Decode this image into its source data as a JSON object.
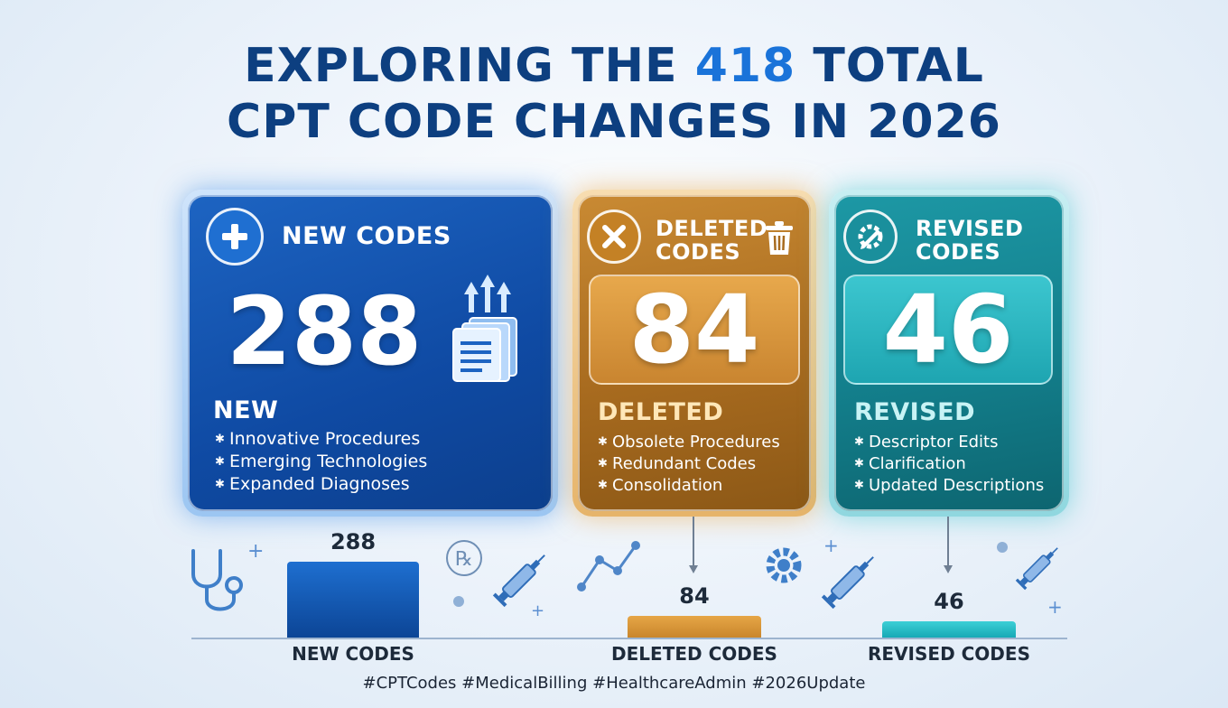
{
  "title": {
    "line1_pre": "EXPLORING THE ",
    "line1_highlight": "418",
    "line1_post": " TOTAL",
    "line2": "CPT CODE CHANGES IN 2026"
  },
  "cards": [
    {
      "heading": "NEW CODES",
      "value": "288",
      "section_title": "NEW",
      "items": [
        "Innovative Procedures",
        "Emerging Technologies",
        "Expanded Diagnoses"
      ],
      "icon": "plus-icon"
    },
    {
      "heading_line1": "DELETED",
      "heading_line2": "CODES",
      "value": "84",
      "section_title": "DELETED",
      "items": [
        "Obsolete Procedures",
        "Redundant Codes",
        "Consolidation"
      ],
      "icon": "x-icon"
    },
    {
      "heading_line1": "REVISED",
      "heading_line2": "CODES",
      "value": "46",
      "section_title": "REVISED",
      "items": [
        "Descriptor Edits",
        "Clarification",
        "Updated Descriptions"
      ],
      "icon": "gear-pencil-icon"
    }
  ],
  "colors": {
    "new": "#0f4fa8",
    "deleted": "#d6952f",
    "revised": "#1fb9c4",
    "title": "#0d3f80",
    "title_highlight": "#1a73d9"
  },
  "chart_data": {
    "type": "bar",
    "categories": [
      "NEW CODES",
      "DELETED CODES",
      "REVISED CODES"
    ],
    "values": [
      288,
      84,
      46
    ],
    "title": "",
    "xlabel": "",
    "ylabel": "",
    "ylim": [
      0,
      288
    ],
    "grid": false
  },
  "hashtags": "#CPTCodes #MedicalBilling #HealthcareAdmin #2026Update"
}
